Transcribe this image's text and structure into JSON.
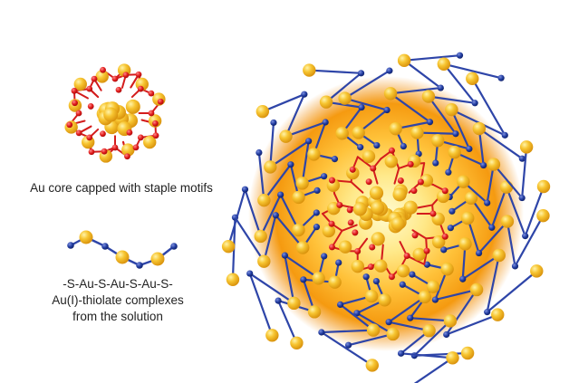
{
  "captions": {
    "core": "Au core capped with staple motifs",
    "thiolate_line1": "-S-Au-S-Au-S-Au-S-",
    "thiolate_line2": "Au(I)-thiolate complexes",
    "thiolate_line3": "from the solution"
  },
  "colors": {
    "gold_atom": "#f2b822",
    "gold_highlight": "#ffe680",
    "sulfur_atom": "#e01a1a",
    "thiolate_node": "#1f3a9e",
    "bond_red": "#d31c1c",
    "bond_blue": "#2e45a8",
    "halo_inner": "#fff9c8",
    "halo_mid": "#ffc23a",
    "halo_outer": "#f08a0a"
  },
  "icons": [
    "au-nanocluster-illustration",
    "thiolate-chain-illustration",
    "capped-nanoparticle-illustration"
  ]
}
